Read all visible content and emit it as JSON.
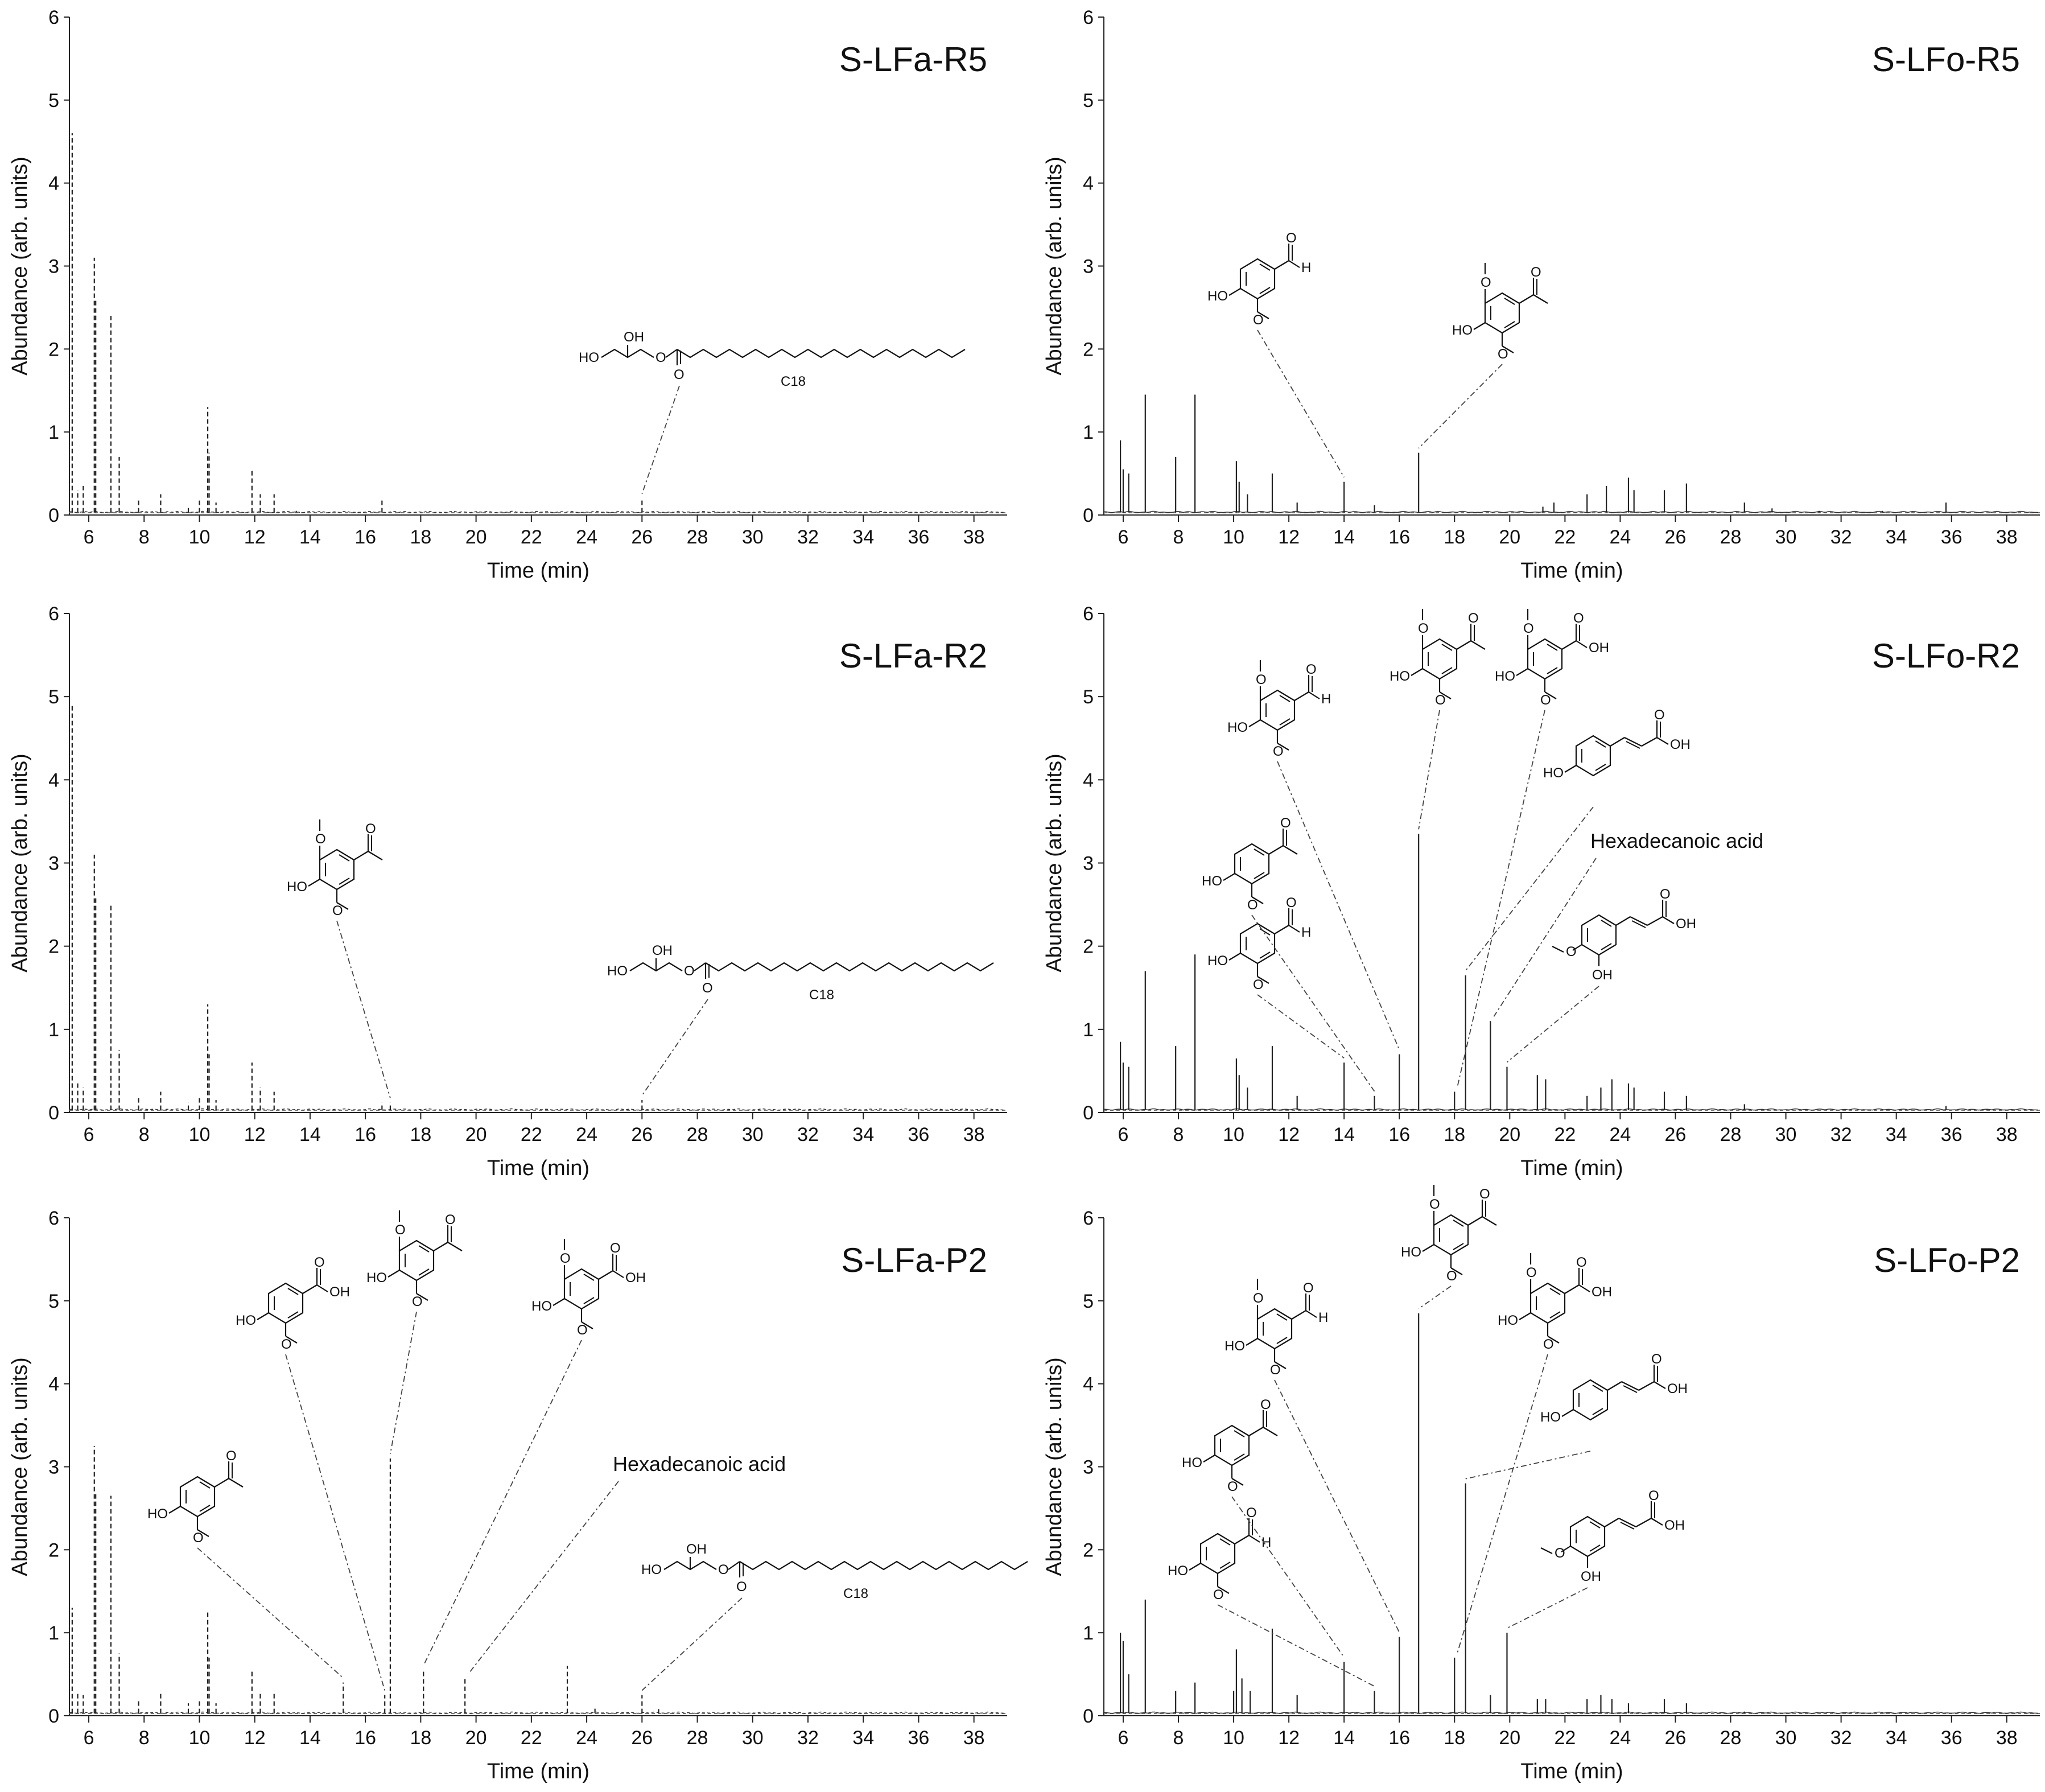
{
  "chart_data": [
    {
      "type": "line",
      "title": "S-LFa-R5",
      "xlabel": "Time (min)",
      "ylabel": "Abundance (arb. units)",
      "xlim": [
        5.3,
        39.2
      ],
      "ylim": [
        0,
        6
      ],
      "xticks": [
        "6",
        "8",
        "10",
        "12",
        "14",
        "16",
        "18",
        "20",
        "22",
        "24",
        "26",
        "28",
        "30",
        "32",
        "34",
        "36",
        "38"
      ],
      "yticks": [
        "0",
        "1",
        "2",
        "3",
        "4",
        "5",
        "6"
      ],
      "peaks": [
        [
          5.4,
          4.6
        ],
        [
          5.6,
          0.3
        ],
        [
          5.8,
          0.35
        ],
        [
          6.2,
          3.1
        ],
        [
          6.25,
          2.6
        ],
        [
          6.8,
          2.4
        ],
        [
          7.1,
          0.7
        ],
        [
          7.8,
          0.2
        ],
        [
          8.6,
          0.25
        ],
        [
          9.6,
          0.12
        ],
        [
          10.0,
          0.2
        ],
        [
          10.3,
          1.3
        ],
        [
          10.35,
          0.75
        ],
        [
          10.6,
          0.15
        ],
        [
          11.9,
          0.55
        ],
        [
          12.2,
          0.25
        ],
        [
          12.7,
          0.25
        ],
        [
          13.5,
          0.05
        ],
        [
          16.6,
          0.18
        ],
        [
          26.0,
          0.2
        ],
        [
          36.2,
          0.03
        ]
      ],
      "dashed": true,
      "annotations": [
        {
          "kind": "struct",
          "struct": "monostearin",
          "peak": 26.0,
          "label": "C18"
        }
      ]
    },
    {
      "type": "line",
      "title": "S-LFo-R5",
      "xlabel": "Time (min)",
      "ylabel": "Abundance (arb. units)",
      "xlim": [
        5.3,
        39.2
      ],
      "ylim": [
        0,
        6
      ],
      "xticks": [
        "6",
        "8",
        "10",
        "12",
        "14",
        "16",
        "18",
        "20",
        "22",
        "24",
        "26",
        "28",
        "30",
        "32",
        "34",
        "36",
        "38"
      ],
      "yticks": [
        "0",
        "1",
        "2",
        "3",
        "4",
        "5",
        "6"
      ],
      "peaks": [
        [
          5.9,
          0.9
        ],
        [
          6.0,
          0.55
        ],
        [
          6.2,
          0.5
        ],
        [
          6.8,
          1.45
        ],
        [
          7.9,
          0.7
        ],
        [
          8.6,
          1.45
        ],
        [
          10.1,
          0.65
        ],
        [
          10.2,
          0.4
        ],
        [
          10.5,
          0.25
        ],
        [
          11.4,
          0.5
        ],
        [
          12.3,
          0.15
        ],
        [
          14.0,
          0.4
        ],
        [
          15.1,
          0.12
        ],
        [
          16.7,
          0.75
        ],
        [
          21.2,
          0.1
        ],
        [
          21.6,
          0.15
        ],
        [
          22.8,
          0.25
        ],
        [
          23.5,
          0.35
        ],
        [
          24.3,
          0.45
        ],
        [
          24.5,
          0.3
        ],
        [
          25.6,
          0.3
        ],
        [
          26.4,
          0.38
        ],
        [
          28.5,
          0.15
        ],
        [
          29.5,
          0.08
        ],
        [
          31.2,
          0.05
        ],
        [
          33.5,
          0.05
        ],
        [
          35.8,
          0.15
        ]
      ],
      "dashed": false,
      "annotations": [
        {
          "kind": "struct",
          "struct": "vanillin",
          "peak": 14.0
        },
        {
          "kind": "struct",
          "struct": "acetosyringone",
          "peak": 16.7
        }
      ]
    },
    {
      "type": "line",
      "title": "S-LFa-R2",
      "xlabel": "Time (min)",
      "ylabel": "Abundance (arb. units)",
      "xlim": [
        5.3,
        39.2
      ],
      "ylim": [
        0,
        6
      ],
      "xticks": [
        "6",
        "8",
        "10",
        "12",
        "14",
        "16",
        "18",
        "20",
        "22",
        "24",
        "26",
        "28",
        "30",
        "32",
        "34",
        "36",
        "38"
      ],
      "yticks": [
        "0",
        "1",
        "2",
        "3",
        "4",
        "5",
        "6"
      ],
      "peaks": [
        [
          5.4,
          4.9
        ],
        [
          5.6,
          0.35
        ],
        [
          5.8,
          0.3
        ],
        [
          6.2,
          3.1
        ],
        [
          6.25,
          2.6
        ],
        [
          6.8,
          2.5
        ],
        [
          7.1,
          0.75
        ],
        [
          7.8,
          0.2
        ],
        [
          8.6,
          0.25
        ],
        [
          9.6,
          0.12
        ],
        [
          10.0,
          0.2
        ],
        [
          10.3,
          1.3
        ],
        [
          10.35,
          0.7
        ],
        [
          10.6,
          0.15
        ],
        [
          11.9,
          0.6
        ],
        [
          12.2,
          0.3
        ],
        [
          12.7,
          0.25
        ],
        [
          16.6,
          0.12
        ],
        [
          16.9,
          0.12
        ],
        [
          26.0,
          0.15
        ]
      ],
      "dashed": true,
      "annotations": [
        {
          "kind": "struct",
          "struct": "acetosyringone",
          "peak": 16.9
        },
        {
          "kind": "struct",
          "struct": "monostearin",
          "peak": 26.0,
          "label": "C18"
        }
      ]
    },
    {
      "type": "line",
      "title": "S-LFo-R2",
      "xlabel": "Time (min)",
      "ylabel": "Abundance (arb. units)",
      "xlim": [
        5.3,
        39.2
      ],
      "ylim": [
        0,
        6
      ],
      "xticks": [
        "6",
        "8",
        "10",
        "12",
        "14",
        "16",
        "18",
        "20",
        "22",
        "24",
        "26",
        "28",
        "30",
        "32",
        "34",
        "36",
        "38"
      ],
      "yticks": [
        "0",
        "1",
        "2",
        "3",
        "4",
        "5",
        "6"
      ],
      "peaks": [
        [
          5.9,
          0.85
        ],
        [
          6.0,
          0.6
        ],
        [
          6.2,
          0.55
        ],
        [
          6.8,
          1.7
        ],
        [
          7.9,
          0.8
        ],
        [
          8.6,
          1.9
        ],
        [
          10.1,
          0.65
        ],
        [
          10.2,
          0.45
        ],
        [
          10.5,
          0.3
        ],
        [
          11.4,
          0.8
        ],
        [
          12.3,
          0.2
        ],
        [
          14.0,
          0.6
        ],
        [
          15.1,
          0.2
        ],
        [
          16.0,
          0.7
        ],
        [
          16.7,
          3.35
        ],
        [
          18.0,
          0.25
        ],
        [
          18.4,
          1.65
        ],
        [
          19.3,
          1.1
        ],
        [
          19.9,
          0.55
        ],
        [
          21.0,
          0.45
        ],
        [
          21.3,
          0.4
        ],
        [
          22.8,
          0.2
        ],
        [
          23.3,
          0.3
        ],
        [
          23.7,
          0.4
        ],
        [
          24.3,
          0.35
        ],
        [
          24.5,
          0.3
        ],
        [
          25.6,
          0.25
        ],
        [
          26.4,
          0.2
        ],
        [
          28.5,
          0.1
        ],
        [
          35.8,
          0.08
        ]
      ],
      "dashed": false,
      "annotations": [
        {
          "kind": "struct",
          "struct": "vanillin",
          "peak": 14.0
        },
        {
          "kind": "struct",
          "struct": "acetovanillone",
          "peak": 15.1
        },
        {
          "kind": "struct",
          "struct": "syringaldehyde",
          "peak": 16.0
        },
        {
          "kind": "struct",
          "struct": "acetosyringone",
          "peak": 16.7
        },
        {
          "kind": "struct",
          "struct": "syringic",
          "peak": 18.1
        },
        {
          "kind": "struct",
          "struct": "coumaric",
          "peak": 18.4
        },
        {
          "kind": "text",
          "text": "Hexadecanoic acid",
          "peak": 19.3
        },
        {
          "kind": "struct",
          "struct": "ferulic",
          "peak": 19.9
        }
      ]
    },
    {
      "type": "line",
      "title": "S-LFa-P2",
      "xlabel": "Time (min)",
      "ylabel": "Abundance (arb. units)",
      "xlim": [
        5.3,
        39.2
      ],
      "ylim": [
        0,
        6
      ],
      "xticks": [
        "6",
        "8",
        "10",
        "12",
        "14",
        "16",
        "18",
        "20",
        "22",
        "24",
        "26",
        "28",
        "30",
        "32",
        "34",
        "36",
        "38"
      ],
      "yticks": [
        "0",
        "1",
        "2",
        "3",
        "4",
        "5",
        "6"
      ],
      "peaks": [
        [
          5.4,
          1.3
        ],
        [
          5.6,
          0.3
        ],
        [
          5.8,
          0.25
        ],
        [
          6.2,
          3.25
        ],
        [
          6.25,
          2.7
        ],
        [
          6.8,
          2.65
        ],
        [
          7.1,
          0.75
        ],
        [
          7.8,
          0.2
        ],
        [
          8.6,
          0.3
        ],
        [
          9.6,
          0.15
        ],
        [
          10.0,
          0.2
        ],
        [
          10.3,
          1.25
        ],
        [
          10.35,
          0.7
        ],
        [
          10.6,
          0.15
        ],
        [
          11.9,
          0.55
        ],
        [
          12.2,
          0.3
        ],
        [
          12.7,
          0.3
        ],
        [
          15.2,
          0.4
        ],
        [
          16.7,
          0.25
        ],
        [
          16.9,
          3.1
        ],
        [
          18.1,
          0.55
        ],
        [
          19.6,
          0.45
        ],
        [
          23.3,
          0.6
        ],
        [
          24.3,
          0.1
        ],
        [
          26.0,
          0.25
        ],
        [
          26.6,
          0.08
        ]
      ],
      "dashed": true,
      "annotations": [
        {
          "kind": "struct",
          "struct": "acetovanillone",
          "peak": 15.2
        },
        {
          "kind": "struct",
          "struct": "vanillic",
          "peak": 16.7
        },
        {
          "kind": "struct",
          "struct": "acetosyringone",
          "peak": 16.9
        },
        {
          "kind": "struct",
          "struct": "syringic",
          "peak": 18.1
        },
        {
          "kind": "text",
          "text": "Hexadecanoic acid",
          "peak": 19.6
        },
        {
          "kind": "struct",
          "struct": "monostearin",
          "peak": 26.0,
          "label": "C18"
        }
      ]
    },
    {
      "type": "line",
      "title": "S-LFo-P2",
      "xlabel": "Time (min)",
      "ylabel": "Abundance (arb. units)",
      "xlim": [
        5.3,
        39.2
      ],
      "ylim": [
        0,
        6
      ],
      "xticks": [
        "6",
        "8",
        "10",
        "12",
        "14",
        "16",
        "18",
        "20",
        "22",
        "24",
        "26",
        "28",
        "30",
        "32",
        "34",
        "36",
        "38"
      ],
      "yticks": [
        "0",
        "1",
        "2",
        "3",
        "4",
        "5",
        "6"
      ],
      "peaks": [
        [
          5.9,
          1.0
        ],
        [
          6.0,
          0.9
        ],
        [
          6.2,
          0.5
        ],
        [
          6.8,
          1.4
        ],
        [
          7.9,
          0.3
        ],
        [
          8.6,
          0.4
        ],
        [
          10.0,
          0.3
        ],
        [
          10.1,
          0.8
        ],
        [
          10.3,
          0.45
        ],
        [
          10.6,
          0.3
        ],
        [
          11.4,
          1.05
        ],
        [
          12.3,
          0.25
        ],
        [
          14.0,
          0.65
        ],
        [
          15.1,
          0.3
        ],
        [
          16.0,
          0.95
        ],
        [
          16.7,
          4.85
        ],
        [
          18.0,
          0.7
        ],
        [
          18.4,
          2.8
        ],
        [
          19.3,
          0.25
        ],
        [
          19.9,
          1.0
        ],
        [
          21.0,
          0.2
        ],
        [
          21.3,
          0.2
        ],
        [
          22.8,
          0.2
        ],
        [
          23.3,
          0.25
        ],
        [
          23.7,
          0.2
        ],
        [
          24.3,
          0.15
        ],
        [
          25.6,
          0.2
        ],
        [
          26.4,
          0.15
        ],
        [
          28.5,
          0.05
        ]
      ],
      "dashed": false,
      "annotations": [
        {
          "kind": "struct",
          "struct": "vanillin",
          "peak": 15.1
        },
        {
          "kind": "struct",
          "struct": "acetovanillone",
          "peak": 14.0
        },
        {
          "kind": "struct",
          "struct": "syringaldehyde",
          "peak": 16.0
        },
        {
          "kind": "struct",
          "struct": "acetosyringone",
          "peak": 16.7
        },
        {
          "kind": "struct",
          "struct": "syringic",
          "peak": 18.1
        },
        {
          "kind": "struct",
          "struct": "coumaric",
          "peak": 18.4
        },
        {
          "kind": "struct",
          "struct": "ferulic",
          "peak": 19.9
        }
      ]
    }
  ],
  "chem_labels": {
    "oh": "OH",
    "ho": "HO",
    "h": "H",
    "o": "O",
    "c18": "C18"
  }
}
